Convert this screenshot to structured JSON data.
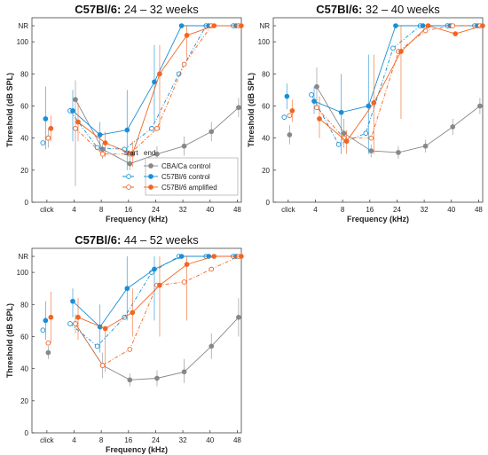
{
  "colors": {
    "control": "#888888",
    "b6ctrl": "#1a8fd6",
    "b6amp": "#f26522"
  },
  "x_positions": {
    "click": -1,
    "4": 0,
    "8": 1,
    "16": 2,
    "24": 3,
    "32": 4,
    "40": 5,
    "48": 6
  },
  "legend": {
    "start_label": "start",
    "end_label": "end",
    "items": [
      "CBA/Ca control",
      "C57Bl/6 control",
      "C57Bl/6 amplified"
    ]
  },
  "chart_data": [
    {
      "type": "line",
      "title_strain": "C57Bl/6:",
      "title_range": "24 – 32 weeks",
      "xlabel": "Frequency (kHz)",
      "ylabel": "Threshold (dB SPL)",
      "x_ticks": [
        "click",
        "4",
        "8",
        "16",
        "24",
        "32",
        "40",
        "48"
      ],
      "y_ticks": [
        "0",
        "20",
        "40",
        "60",
        "80",
        "100",
        "NR"
      ],
      "ylim": [
        0,
        115
      ],
      "series": [
        {
          "name": "CBA/Ca control",
          "key": "control",
          "phase": "end",
          "click": 40,
          "x": [
            4,
            8,
            16,
            24,
            32,
            40,
            48
          ],
          "y": [
            64,
            33,
            24,
            30,
            35,
            44,
            59
          ],
          "err": [
            [
              34,
              46
            ],
            [
              10,
              76
            ],
            [
              27,
              37
            ],
            [
              20,
              28
            ],
            [
              25,
              35
            ],
            [
              29,
              41
            ],
            [
              38,
              50
            ],
            [
              53,
              65
            ]
          ]
        },
        {
          "name": "C57Bl/6 control",
          "key": "b6ctrl",
          "phase": "start",
          "click": 37,
          "x": [
            4,
            8,
            16,
            24,
            32,
            40,
            48
          ],
          "y": [
            57,
            34,
            33,
            46,
            80,
            110,
            110
          ]
        },
        {
          "name": "C57Bl/6 control",
          "key": "b6ctrl",
          "phase": "end",
          "click": 52,
          "x": [
            4,
            8,
            16,
            24,
            32,
            40,
            48
          ],
          "y": [
            57,
            42,
            45,
            75,
            110,
            110,
            110
          ],
          "err": [
            [
              33,
              72
            ],
            [
              38,
              70
            ],
            [
              32,
              50
            ],
            [
              20,
              70
            ],
            [
              50,
              98
            ]
          ]
        },
        {
          "name": "C57Bl/6 amplified",
          "key": "b6amp",
          "phase": "start",
          "click": 40,
          "x": [
            4,
            8,
            16,
            24,
            32,
            40,
            48
          ],
          "y": [
            46,
            30,
            30,
            46,
            86,
            110,
            110
          ]
        },
        {
          "name": "C57Bl/6 amplified",
          "key": "b6amp",
          "phase": "end",
          "click": 46,
          "x": [
            4,
            8,
            16,
            24,
            32,
            40,
            48
          ],
          "y": [
            50,
            37,
            30,
            80,
            104,
            110,
            110
          ],
          "err": [
            [
              38,
              54
            ],
            [
              38,
              62
            ],
            [
              28,
              44
            ],
            [
              22,
              38
            ],
            [
              45,
              98
            ],
            [
              90,
              110
            ]
          ]
        }
      ]
    },
    {
      "type": "line",
      "title_strain": "C57Bl/6:",
      "title_range": "32 – 40 weeks",
      "xlabel": "Frequency (kHz)",
      "ylabel": "Threshold (dB SPL)",
      "x_ticks": [
        "click",
        "4",
        "8",
        "16",
        "24",
        "32",
        "40",
        "48"
      ],
      "y_ticks": [
        "0",
        "20",
        "40",
        "60",
        "80",
        "100",
        "NR"
      ],
      "ylim": [
        0,
        115
      ],
      "series": [
        {
          "name": "CBA/Ca control",
          "key": "control",
          "phase": "end",
          "click": 42,
          "x": [
            4,
            8,
            16,
            24,
            32,
            40,
            48
          ],
          "y": [
            72,
            43,
            32,
            31,
            35,
            47,
            60
          ],
          "err": [
            [
              36,
              48
            ],
            [
              60,
              84
            ],
            [
              34,
              52
            ],
            [
              28,
              36
            ],
            [
              27,
              35
            ],
            [
              31,
              39
            ],
            [
              42,
              52
            ],
            [
              55,
              65
            ]
          ]
        },
        {
          "name": "C57Bl/6 control",
          "key": "b6ctrl",
          "phase": "start",
          "click": 53,
          "x": [
            4,
            8,
            16,
            24,
            32,
            40,
            48
          ],
          "y": [
            67,
            36,
            43,
            96,
            110,
            110,
            110
          ]
        },
        {
          "name": "C57Bl/6 control",
          "key": "b6ctrl",
          "phase": "end",
          "click": 66,
          "x": [
            4,
            8,
            16,
            24,
            32,
            40,
            48
          ],
          "y": [
            63,
            56,
            60,
            110,
            110,
            110,
            110
          ],
          "err": [
            [
              58,
              74
            ],
            [
              55,
              72
            ],
            [
              30,
              80
            ],
            [
              30,
              92
            ]
          ]
        },
        {
          "name": "C57Bl/6 amplified",
          "key": "b6amp",
          "phase": "start",
          "click": 54,
          "x": [
            4,
            8,
            16,
            24,
            32,
            40,
            48
          ],
          "y": [
            59,
            40,
            40,
            94,
            107,
            110,
            110
          ]
        },
        {
          "name": "C57Bl/6 amplified",
          "key": "b6amp",
          "phase": "end",
          "click": 57,
          "x": [
            4,
            8,
            16,
            24,
            32,
            40,
            48
          ],
          "y": [
            52,
            38,
            62,
            94,
            110,
            105,
            110
          ],
          "err": [
            [
              50,
              64
            ],
            [
              40,
              66
            ],
            [
              30,
              45
            ],
            [
              30,
              92
            ],
            [
              52,
              110
            ]
          ]
        }
      ]
    },
    {
      "type": "line",
      "title_strain": "C57Bl/6:",
      "title_range": "44 – 52 weeks",
      "xlabel": "Frequency (kHz)",
      "ylabel": "Threshold (dB SPL)",
      "x_ticks": [
        "click",
        "4",
        "8",
        "16",
        "24",
        "32",
        "40",
        "48"
      ],
      "y_ticks": [
        "0",
        "20",
        "40",
        "60",
        "80",
        "100",
        "NR"
      ],
      "ylim": [
        0,
        115
      ],
      "series": [
        {
          "name": "CBA/Ca control",
          "key": "control",
          "phase": "end",
          "click": 50,
          "x": [
            4,
            8,
            16,
            24,
            32,
            40,
            48
          ],
          "y": [
            68,
            42,
            33,
            34,
            38,
            54,
            72
          ],
          "err": [
            [
              46,
              54
            ],
            [
              62,
              74
            ],
            [
              34,
              50
            ],
            [
              29,
              37
            ],
            [
              29,
              39
            ],
            [
              31,
              46
            ],
            [
              46,
              62
            ],
            [
              60,
              84
            ]
          ]
        },
        {
          "name": "C57Bl/6 control",
          "key": "b6ctrl",
          "phase": "start",
          "click": 64,
          "x": [
            4,
            8,
            16,
            24,
            32,
            40,
            48
          ],
          "y": [
            68,
            54,
            72,
            100,
            110,
            110,
            110
          ]
        },
        {
          "name": "C57Bl/6 control",
          "key": "b6ctrl",
          "phase": "end",
          "click": 70,
          "x": [
            4,
            8,
            16,
            24,
            32,
            40,
            48
          ],
          "y": [
            82,
            66,
            90,
            102,
            110,
            110,
            110
          ],
          "err": [
            [
              58,
              82
            ],
            [
              72,
              90
            ],
            [
              50,
              80
            ],
            [
              70,
              110
            ],
            [
              70,
              110
            ]
          ]
        },
        {
          "name": "C57Bl/6 amplified",
          "key": "b6amp",
          "phase": "start",
          "click": 56,
          "x": [
            4,
            8,
            16,
            24,
            32,
            40,
            48
          ],
          "y": [
            68,
            42,
            52,
            92,
            94,
            102,
            110
          ]
        },
        {
          "name": "C57Bl/6 amplified",
          "key": "b6amp",
          "phase": "end",
          "click": 72,
          "x": [
            4,
            8,
            16,
            24,
            32,
            40,
            48
          ],
          "y": [
            72,
            65,
            75,
            92,
            105,
            110,
            110
          ],
          "err": [
            [
              56,
              88
            ],
            [
              58,
              84
            ],
            [
              38,
              66
            ],
            [
              60,
              90
            ],
            [
              60,
              110
            ],
            [
              70,
              110
            ]
          ]
        }
      ]
    }
  ]
}
